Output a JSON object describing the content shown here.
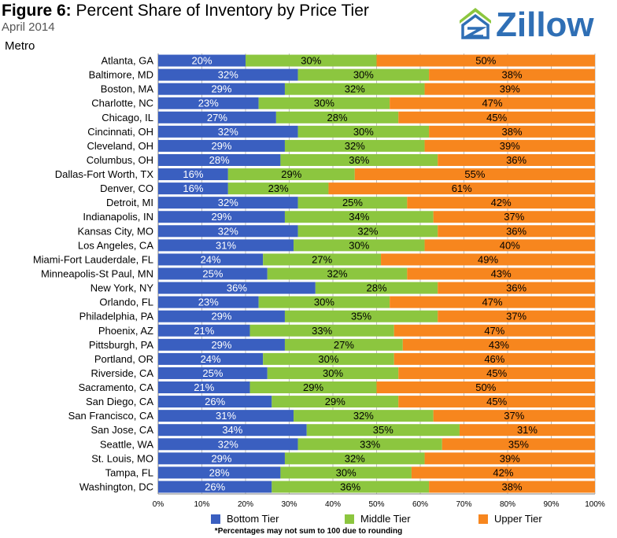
{
  "header": {
    "figure_label": "Figure 6:",
    "title": "Percent Share of Inventory by Price Tier",
    "subtitle": "April 2014",
    "axis_title": "Metro"
  },
  "brand": {
    "logo_text": "Zillow"
  },
  "colors": {
    "bottom": "#3a5fc0",
    "middle": "#8cc63f",
    "upper": "#f7861e",
    "grid": "#bdbdbd"
  },
  "legend": {
    "bottom": "Bottom Tier",
    "middle": "Middle Tier",
    "upper": "Upper Tier"
  },
  "footnote": "*Percentages may not sum to 100 due to rounding",
  "chart_data": {
    "type": "bar",
    "orientation": "horizontal",
    "stacked": true,
    "title": "Percent Share of Inventory by Price Tier",
    "ylabel": "Metro",
    "xlim": [
      0,
      100
    ],
    "x_ticks": [
      "0%",
      "10%",
      "20%",
      "30%",
      "40%",
      "50%",
      "60%",
      "70%",
      "80%",
      "90%",
      "100%"
    ],
    "grid": true,
    "legend_position": "bottom",
    "categories": [
      "Atlanta, GA",
      "Baltimore, MD",
      "Boston, MA",
      "Charlotte, NC",
      "Chicago, IL",
      "Cincinnati, OH",
      "Cleveland, OH",
      "Columbus, OH",
      "Dallas-Fort Worth, TX",
      "Denver, CO",
      "Detroit, MI",
      "Indianapolis, IN",
      "Kansas City, MO",
      "Los Angeles, CA",
      "Miami-Fort Lauderdale, FL",
      "Minneapolis-St Paul, MN",
      "New York, NY",
      "Orlando, FL",
      "Philadelphia, PA",
      "Phoenix, AZ",
      "Pittsburgh, PA",
      "Portland, OR",
      "Riverside, CA",
      "Sacramento, CA",
      "San Diego, CA",
      "San Francisco, CA",
      "San Jose, CA",
      "Seattle, WA",
      "St. Louis, MO",
      "Tampa, FL",
      "Washington, DC"
    ],
    "series": [
      {
        "name": "Bottom Tier",
        "values": [
          20,
          32,
          29,
          23,
          27,
          32,
          29,
          28,
          16,
          16,
          32,
          29,
          32,
          31,
          24,
          25,
          36,
          23,
          29,
          21,
          29,
          24,
          25,
          21,
          26,
          31,
          34,
          32,
          29,
          28,
          26
        ]
      },
      {
        "name": "Middle Tier",
        "values": [
          30,
          30,
          32,
          30,
          28,
          30,
          32,
          36,
          29,
          23,
          25,
          34,
          32,
          30,
          27,
          32,
          28,
          30,
          35,
          33,
          27,
          30,
          30,
          29,
          29,
          32,
          35,
          33,
          32,
          30,
          36
        ]
      },
      {
        "name": "Upper Tier",
        "values": [
          50,
          38,
          39,
          47,
          45,
          38,
          39,
          36,
          55,
          61,
          42,
          37,
          36,
          40,
          49,
          43,
          36,
          47,
          37,
          47,
          43,
          46,
          45,
          50,
          45,
          37,
          31,
          35,
          39,
          42,
          38
        ]
      }
    ]
  }
}
